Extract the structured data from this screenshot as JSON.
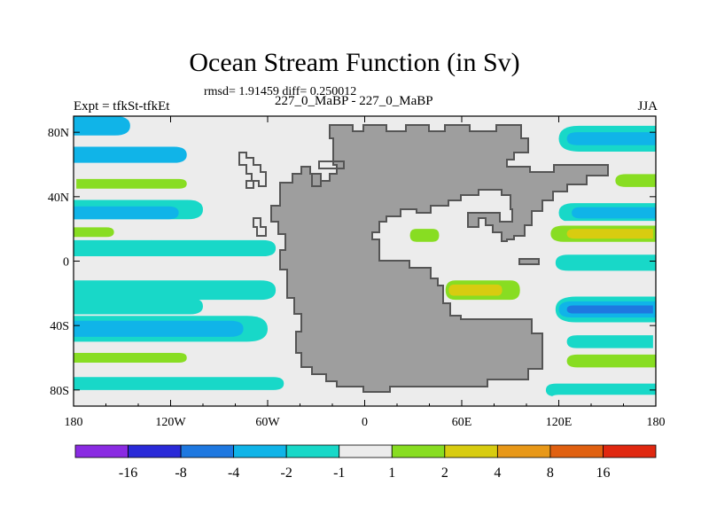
{
  "header": {
    "title": "Ocean Stream Function (in Sv)",
    "stats": "rmsd= 1.91459 diff= 0.250012",
    "left_label": "Expt = tfkSt-tfkEt",
    "center_label": "227_0_MaBP - 227_0_MaBP",
    "right_label": "JJA"
  },
  "chart_data": {
    "type": "heatmap",
    "title": "Ocean Stream Function (in Sv)",
    "subtitle": "rmsd= 1.91459 diff= 0.250012",
    "xlim": [
      -180,
      180
    ],
    "ylim": [
      -90,
      90
    ],
    "x_ticks": [
      {
        "value": -180,
        "label": "180"
      },
      {
        "value": -120,
        "label": "120W"
      },
      {
        "value": -60,
        "label": "60W"
      },
      {
        "value": 0,
        "label": "0"
      },
      {
        "value": 60,
        "label": "60E"
      },
      {
        "value": 120,
        "label": "120E"
      },
      {
        "value": 180,
        "label": "180"
      }
    ],
    "y_ticks": [
      {
        "value": 80,
        "label": "80N"
      },
      {
        "value": 40,
        "label": "40N"
      },
      {
        "value": 0,
        "label": "0"
      },
      {
        "value": -40,
        "label": "40S"
      },
      {
        "value": -80,
        "label": "80S"
      }
    ],
    "land_color": "#9e9e9e",
    "background_color": "#ececec",
    "colorbar": {
      "levels": [
        "-16",
        "-8",
        "-4",
        "-2",
        "-1",
        "1",
        "2",
        "4",
        "8",
        "16"
      ],
      "colors": [
        "#8a2be2",
        "#2a2ad8",
        "#1e78e0",
        "#10b4e8",
        "#18d8c8",
        "#ececec",
        "#88dd22",
        "#d8cc10",
        "#e89818",
        "#e06010",
        "#e02810"
      ]
    },
    "bands": [
      {
        "side": "west",
        "lat": 84,
        "lat_width": 12,
        "lon_start": -180,
        "lon_end": -145,
        "level": -2
      },
      {
        "side": "west",
        "lat": 66,
        "lat_width": 10,
        "lon_start": -180,
        "lon_end": -110,
        "level": -2
      },
      {
        "side": "west",
        "lat": 52,
        "lat_width": 10,
        "lon_start": -180,
        "lon_end": -78,
        "level": 1
      },
      {
        "side": "west",
        "lat": 48,
        "lat_width": 6,
        "lon_start": -175,
        "lon_end": -110,
        "level": 2
      },
      {
        "side": "west",
        "lat": 32,
        "lat_width": 12,
        "lon_start": -180,
        "lon_end": -100,
        "level": -1
      },
      {
        "side": "west",
        "lat": 30,
        "lat_width": 8,
        "lon_start": -178,
        "lon_end": -115,
        "level": -2
      },
      {
        "side": "west",
        "lat": 18,
        "lat_width": 10,
        "lon_start": -180,
        "lon_end": -125,
        "level": 1
      },
      {
        "side": "west",
        "lat": 18,
        "lat_width": 6,
        "lon_start": -180,
        "lon_end": -155,
        "level": 2
      },
      {
        "side": "west",
        "lat": 8,
        "lat_width": 10,
        "lon_start": -180,
        "lon_end": -55,
        "level": -1
      },
      {
        "side": "west",
        "lat": -18,
        "lat_width": 12,
        "lon_start": -178,
        "lon_end": -55,
        "level": -1
      },
      {
        "side": "west",
        "lat": -28,
        "lat_width": 10,
        "lon_start": -180,
        "lon_end": -100,
        "level": -1
      },
      {
        "side": "west",
        "lat": -42,
        "lat_width": 16,
        "lon_start": -180,
        "lon_end": -60,
        "level": -1
      },
      {
        "side": "west",
        "lat": -42,
        "lat_width": 10,
        "lon_start": -180,
        "lon_end": -75,
        "level": -2
      },
      {
        "side": "west",
        "lat": -60,
        "lat_width": 12,
        "lon_start": -180,
        "lon_end": -70,
        "level": 1
      },
      {
        "side": "west",
        "lat": -60,
        "lat_width": 6,
        "lon_start": -180,
        "lon_end": -110,
        "level": 2
      },
      {
        "side": "west",
        "lat": -76,
        "lat_width": 8,
        "lon_start": -180,
        "lon_end": -50,
        "level": -1
      },
      {
        "side": "west",
        "lat": -86,
        "lat_width": 6,
        "lon_start": -180,
        "lon_end": -55,
        "level": 1
      },
      {
        "side": "east",
        "lat": 76,
        "lat_width": 16,
        "lon_start": 120,
        "lon_end": 180,
        "level": -1
      },
      {
        "side": "east",
        "lat": 76,
        "lat_width": 8,
        "lon_start": 125,
        "lon_end": 180,
        "level": -2
      },
      {
        "side": "east",
        "lat": 50,
        "lat_width": 8,
        "lon_start": 155,
        "lon_end": 180,
        "level": 2
      },
      {
        "side": "east",
        "lat": 30,
        "lat_width": 12,
        "lon_start": 120,
        "lon_end": 180,
        "level": -1
      },
      {
        "side": "east",
        "lat": 30,
        "lat_width": 7,
        "lon_start": 128,
        "lon_end": 180,
        "level": -2
      },
      {
        "side": "east",
        "lat": 17,
        "lat_width": 16,
        "lon_start": 112,
        "lon_end": 180,
        "level": 1
      },
      {
        "side": "east",
        "lat": 17,
        "lat_width": 10,
        "lon_start": 115,
        "lon_end": 180,
        "level": 2
      },
      {
        "side": "east",
        "lat": 17,
        "lat_width": 6,
        "lon_start": 125,
        "lon_end": 175,
        "level": 4
      },
      {
        "side": "east",
        "lat": -1,
        "lat_width": 10,
        "lon_start": 118,
        "lon_end": 180,
        "level": -1
      },
      {
        "side": "east",
        "lat": -30,
        "lat_width": 16,
        "lon_start": 118,
        "lon_end": 180,
        "level": -1
      },
      {
        "side": "east",
        "lat": -30,
        "lat_width": 10,
        "lon_start": 120,
        "lon_end": 180,
        "level": -2
      },
      {
        "side": "east",
        "lat": -30,
        "lat_width": 5,
        "lon_start": 125,
        "lon_end": 175,
        "level": -4
      },
      {
        "side": "east",
        "lat": -50,
        "lat_width": 8,
        "lon_start": 125,
        "lon_end": 175,
        "level": -1
      },
      {
        "side": "east",
        "lat": -62,
        "lat_width": 14,
        "lon_start": 122,
        "lon_end": 180,
        "level": 1
      },
      {
        "side": "east",
        "lat": -62,
        "lat_width": 8,
        "lon_start": 125,
        "lon_end": 180,
        "level": 2
      },
      {
        "side": "east",
        "lat": -80,
        "lat_width": 8,
        "lon_start": 112,
        "lon_end": 180,
        "level": -1
      },
      {
        "side": "east",
        "lat": -86,
        "lat_width": 6,
        "lon_start": 115,
        "lon_end": 180,
        "level": 1
      },
      {
        "side": "interior",
        "lat": 18,
        "lat_width": 14,
        "lon_start": 25,
        "lon_end": 50,
        "level": 1
      },
      {
        "side": "interior",
        "lat": 16,
        "lat_width": 8,
        "lon_start": 28,
        "lon_end": 46,
        "level": 2
      },
      {
        "side": "interior",
        "lat": -18,
        "lat_width": 18,
        "lon_start": 48,
        "lon_end": 100,
        "level": 1
      },
      {
        "side": "interior",
        "lat": -18,
        "lat_width": 12,
        "lon_start": 50,
        "lon_end": 96,
        "level": 2
      },
      {
        "side": "interior",
        "lat": -18,
        "lat_width": 7,
        "lon_start": 52,
        "lon_end": 85,
        "level": 4
      }
    ]
  }
}
